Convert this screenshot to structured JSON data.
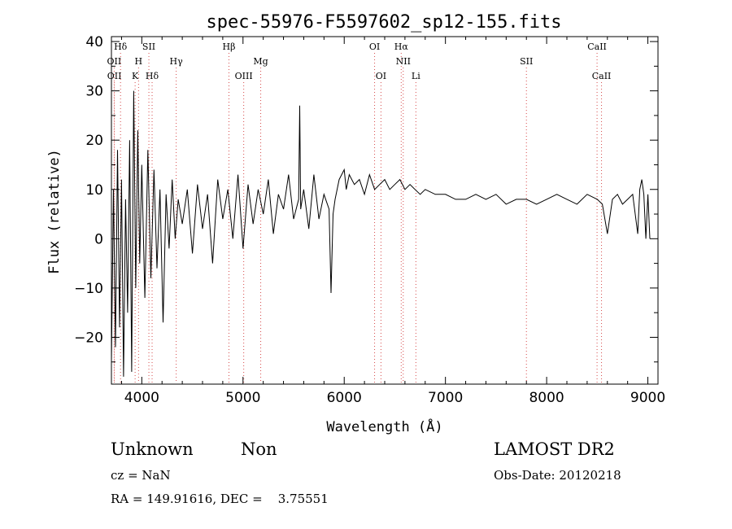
{
  "chart_data": {
    "type": "line",
    "title": "spec-55976-F5597602_sp12-155.fits",
    "xlabel": "Wavelength (Å)",
    "ylabel": "Flux (relative)",
    "xlim": [
      3700,
      9100
    ],
    "ylim": [
      -29.5,
      41
    ],
    "xticks": [
      4000,
      5000,
      6000,
      7000,
      8000,
      9000
    ],
    "yticks": [
      -20,
      -10,
      0,
      10,
      20,
      30,
      40
    ],
    "grid": false,
    "series": [
      {
        "name": "",
        "x": [
          3700,
          3720,
          3740,
          3760,
          3780,
          3800,
          3820,
          3840,
          3860,
          3880,
          3900,
          3920,
          3940,
          3960,
          3980,
          4000,
          4030,
          4060,
          4090,
          4120,
          4150,
          4180,
          4210,
          4240,
          4270,
          4300,
          4330,
          4360,
          4400,
          4450,
          4500,
          4550,
          4600,
          4650,
          4700,
          4750,
          4800,
          4850,
          4900,
          4950,
          5000,
          5050,
          5100,
          5150,
          5200,
          5250,
          5300,
          5350,
          5400,
          5450,
          5500,
          5550,
          5560,
          5570,
          5600,
          5650,
          5700,
          5750,
          5800,
          5850,
          5870,
          5890,
          5910,
          5950,
          6000,
          6020,
          6050,
          6100,
          6150,
          6200,
          6250,
          6300,
          6350,
          6400,
          6450,
          6500,
          6550,
          6600,
          6650,
          6700,
          6750,
          6800,
          6900,
          7000,
          7100,
          7200,
          7300,
          7400,
          7500,
          7600,
          7700,
          7800,
          7900,
          8000,
          8100,
          8200,
          8300,
          8400,
          8500,
          8550,
          8600,
          8650,
          8700,
          8750,
          8800,
          8850,
          8900,
          8920,
          8940,
          8960,
          8980,
          9000,
          9020
        ],
        "values": [
          -25,
          10,
          -22,
          18,
          -18,
          12,
          -28,
          8,
          -15,
          20,
          -27,
          30,
          -10,
          22,
          -5,
          15,
          -12,
          18,
          -8,
          14,
          -6,
          10,
          -17,
          9,
          -2,
          12,
          0,
          8,
          3,
          10,
          -3,
          11,
          2,
          9,
          -5,
          12,
          4,
          10,
          0,
          13,
          -2,
          11,
          3,
          10,
          5,
          12,
          1,
          9,
          6,
          13,
          4,
          8,
          27,
          6,
          10,
          2,
          13,
          4,
          9,
          6,
          -11,
          5,
          8,
          12,
          14,
          10,
          13,
          11,
          12,
          9,
          13,
          10,
          11,
          12,
          10,
          11,
          12,
          10,
          11,
          10,
          9,
          10,
          9,
          9,
          8,
          8,
          9,
          8,
          9,
          7,
          8,
          8,
          7,
          8,
          9,
          8,
          7,
          9,
          8,
          7,
          1,
          8,
          9,
          7,
          8,
          9,
          1,
          10,
          12,
          9,
          0,
          9,
          0
        ]
      }
    ],
    "line_markers": [
      {
        "label": "Hδ",
        "x": 3790,
        "row": "top"
      },
      {
        "label": "SII",
        "x": 4070,
        "row": "top"
      },
      {
        "label": "Hβ",
        "x": 4861,
        "row": "top"
      },
      {
        "label": "OI",
        "x": 6300,
        "row": "top"
      },
      {
        "label": "Hα",
        "x": 6563,
        "row": "top"
      },
      {
        "label": "CaII",
        "x": 8498,
        "row": "top"
      },
      {
        "label": "OII",
        "x": 3727,
        "row": "mid"
      },
      {
        "label": "H",
        "x": 3968,
        "row": "mid"
      },
      {
        "label": "Hγ",
        "x": 4340,
        "row": "mid"
      },
      {
        "label": "Mg",
        "x": 5175,
        "row": "mid"
      },
      {
        "label": "NII",
        "x": 6583,
        "row": "mid"
      },
      {
        "label": "SII",
        "x": 7800,
        "row": "mid"
      },
      {
        "label": "OII",
        "x": 3729,
        "row": "low"
      },
      {
        "label": "K",
        "x": 3934,
        "row": "low"
      },
      {
        "label": "Hδ",
        "x": 4102,
        "row": "low"
      },
      {
        "label": "OIII",
        "x": 5007,
        "row": "low"
      },
      {
        "label": "OI",
        "x": 6363,
        "row": "low"
      },
      {
        "label": "Li",
        "x": 6708,
        "row": "low"
      },
      {
        "label": "CaII",
        "x": 8542,
        "row": "low"
      }
    ]
  },
  "footer": {
    "class_label": "Unknown",
    "subclass_label": "Non",
    "survey": "LAMOST DR2",
    "cz": "cz = NaN",
    "obs_date": "Obs-Date: 20120218",
    "coords": "RA = 149.91616, DEC =    3.75551"
  }
}
